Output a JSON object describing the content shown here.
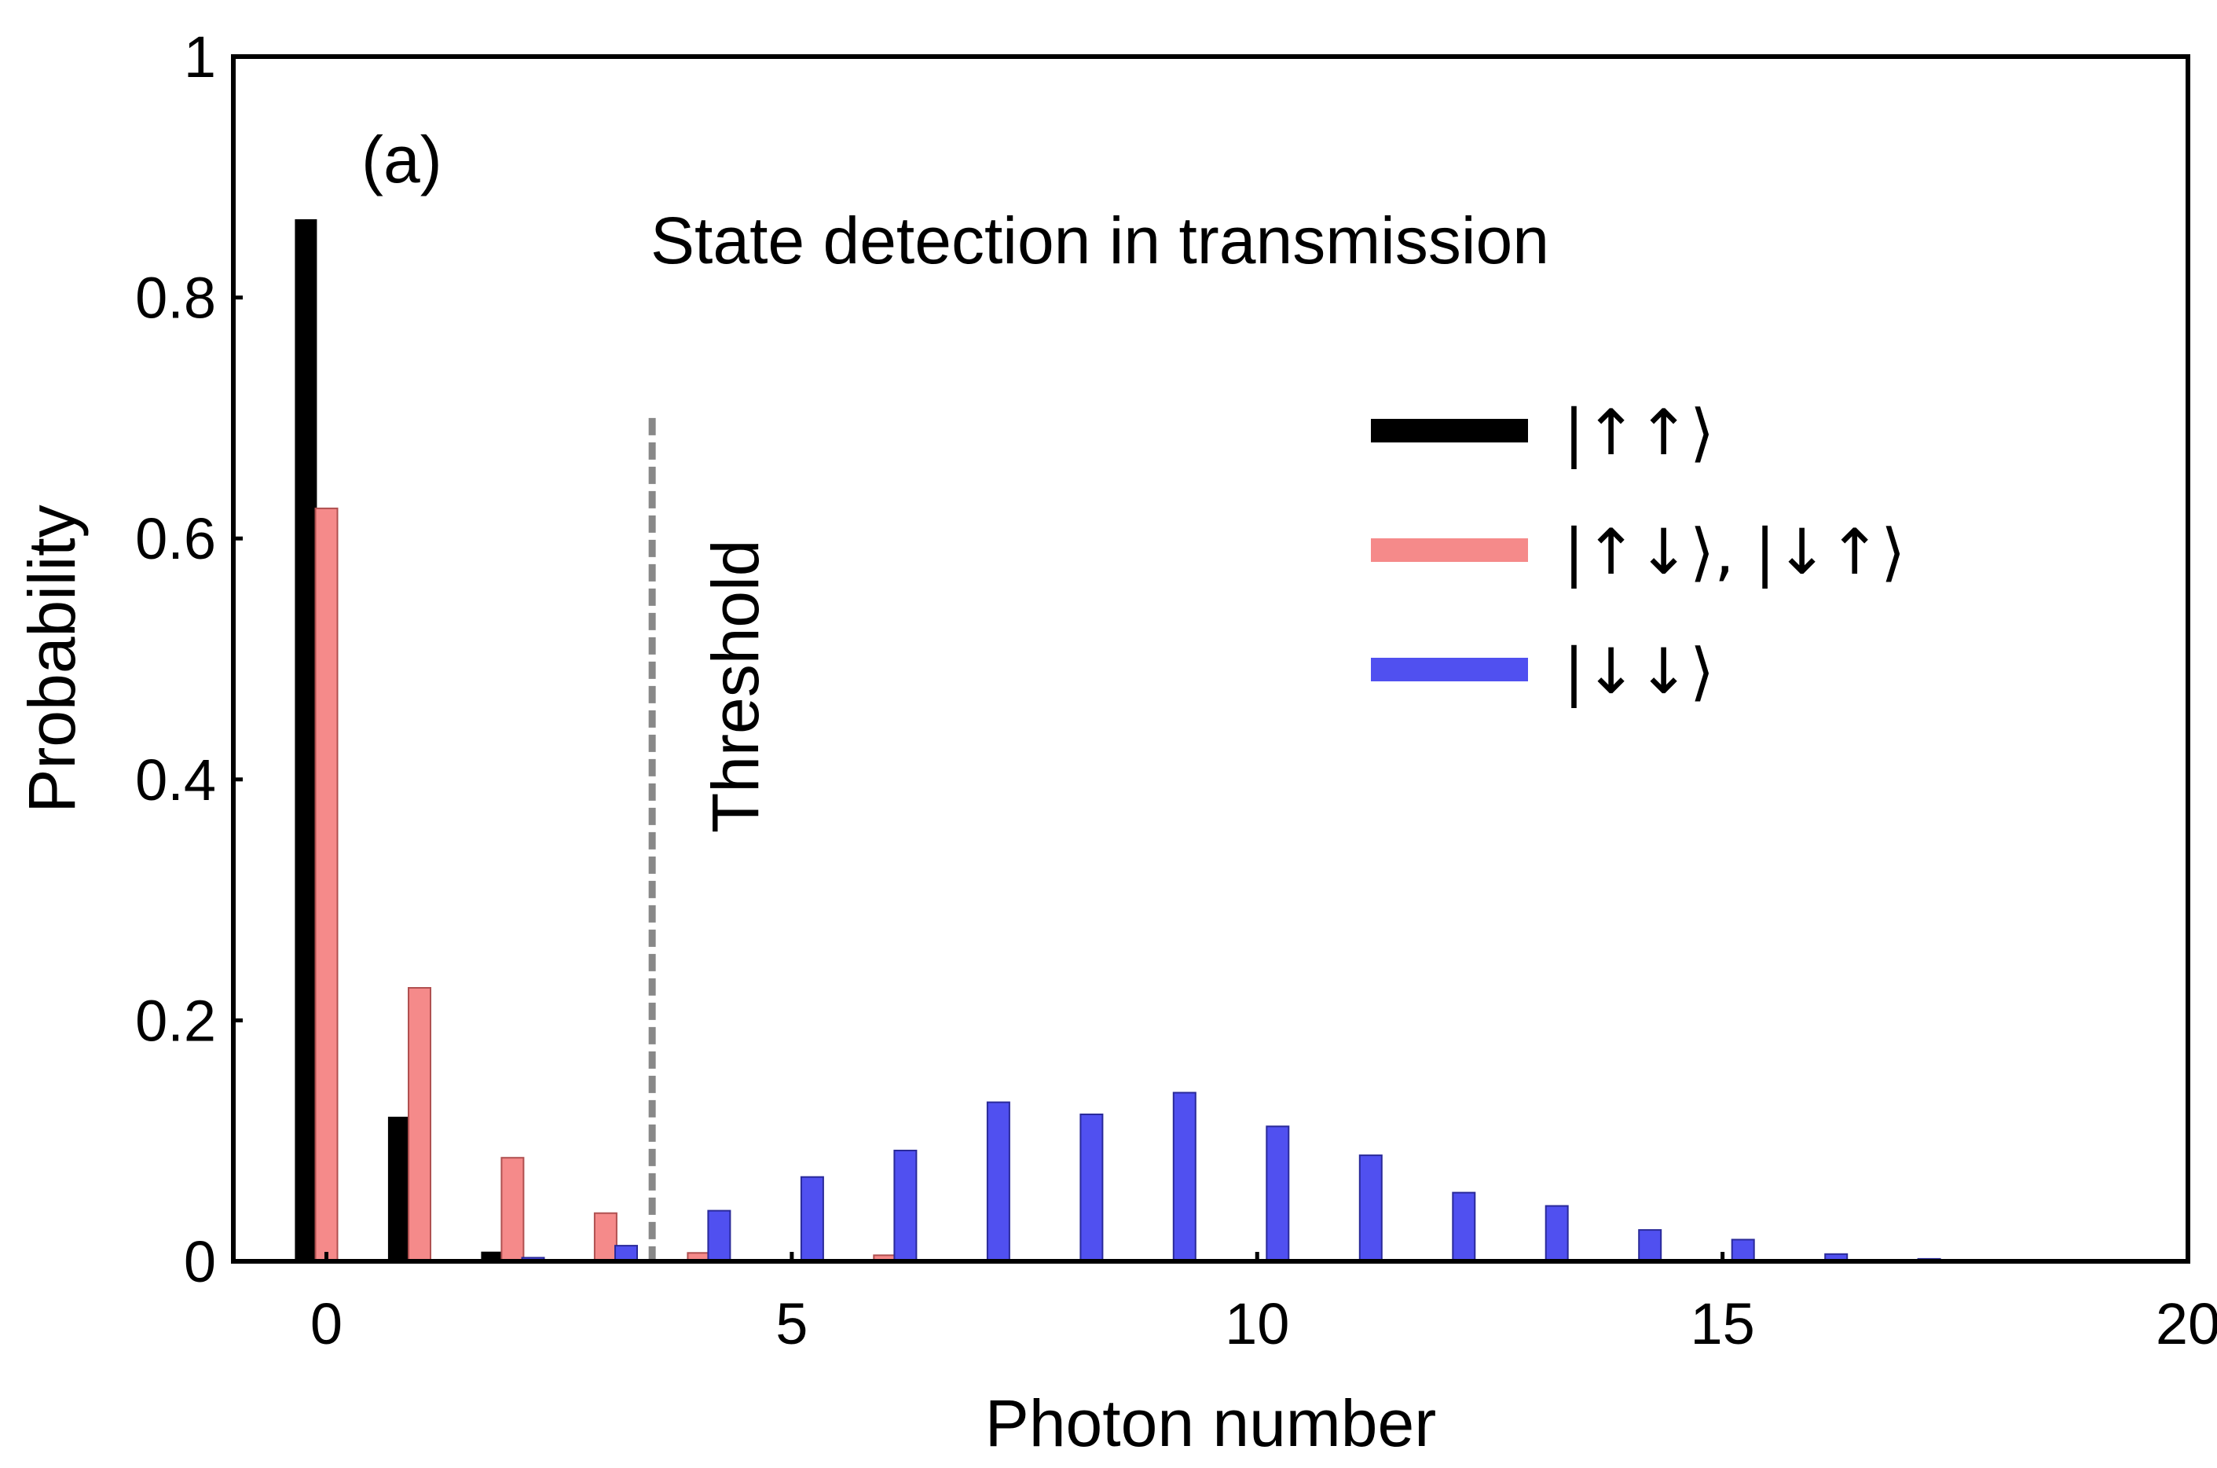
{
  "chart_data": {
    "type": "bar",
    "title": "",
    "panel_label": "(a)",
    "annotation": "State detection in transmission",
    "xlabel": "Photon number",
    "ylabel": "Probability",
    "xlim": [
      -1,
      20
    ],
    "ylim": [
      0,
      1
    ],
    "xticks": [
      0,
      5,
      10,
      15,
      20
    ],
    "xtick_labels": [
      "0",
      "5",
      "10",
      "15",
      "20"
    ],
    "yticks": [
      0,
      0.2,
      0.4,
      0.6,
      0.8,
      1
    ],
    "ytick_labels": [
      "0",
      "0.2",
      "0.4",
      "0.6",
      "0.8",
      "1"
    ],
    "grid": false,
    "legend_position": "top-right",
    "threshold": {
      "x": 3.5,
      "y_max": 0.7,
      "label": "Threshold",
      "color": "#888888"
    },
    "series": [
      {
        "name": "|↑↑⟩",
        "color": "#000000",
        "x": [
          0,
          1,
          2
        ],
        "values": [
          0.865,
          0.12,
          0.008
        ]
      },
      {
        "name": "|↑↓⟩, |↓↑⟩",
        "color": "#f58a8a",
        "x": [
          0,
          1,
          2,
          3,
          4,
          6,
          14
        ],
        "values": [
          0.625,
          0.227,
          0.086,
          0.04,
          0.007,
          0.005,
          0.001
        ]
      },
      {
        "name": "|↓↓⟩",
        "color": "#5050f0",
        "x": [
          2,
          3,
          4,
          5,
          6,
          7,
          8,
          9,
          10,
          11,
          12,
          13,
          14,
          15,
          16,
          17
        ],
        "values": [
          0.003,
          0.013,
          0.042,
          0.07,
          0.092,
          0.132,
          0.122,
          0.14,
          0.112,
          0.088,
          0.057,
          0.046,
          0.026,
          0.018,
          0.006,
          0.002
        ]
      }
    ]
  }
}
